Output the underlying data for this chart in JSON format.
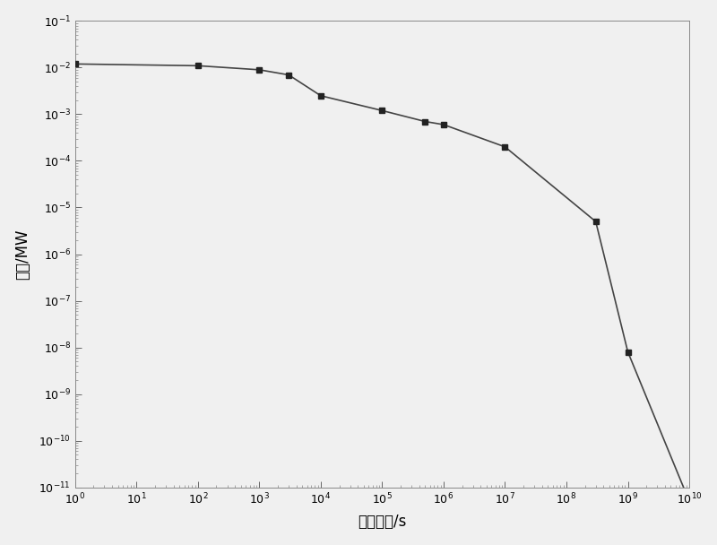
{
  "x": [
    1,
    100,
    1000,
    3000,
    10000,
    100000,
    500000,
    1000000,
    10000000.0,
    300000000.0,
    1000000000.0,
    10000000000.0
  ],
  "y": [
    0.012,
    0.011,
    0.009,
    0.007,
    0.0025,
    0.0012,
    0.0007,
    0.0006,
    0.0002,
    5e-06,
    8e-09,
    5e-12
  ],
  "xlabel": "停堆时间/s",
  "ylabel": "余热/MW",
  "xlim_min": 1,
  "xlim_max": 10000000000.0,
  "ylim_min": 1e-11,
  "ylim_max": 0.1,
  "line_color": "#444444",
  "marker_color": "#222222",
  "marker": "s",
  "marker_size": 5,
  "linewidth": 1.2,
  "background_color": "#f0f0f0",
  "spine_color": "#888888"
}
